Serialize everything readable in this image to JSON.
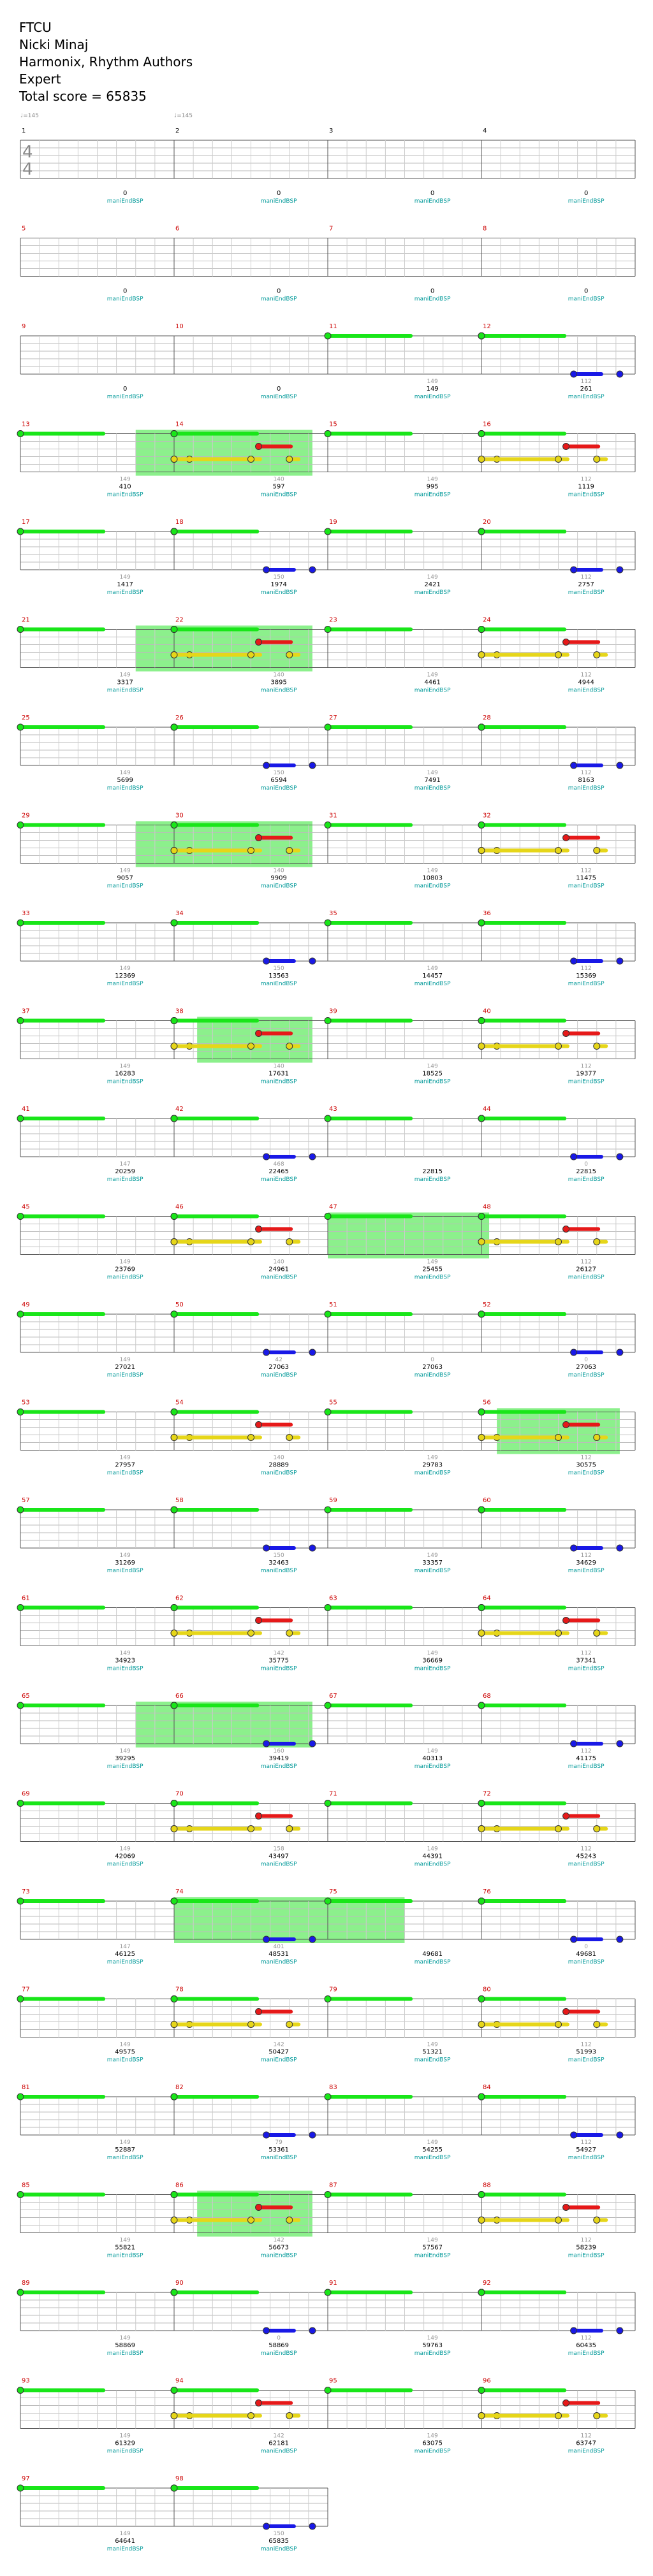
{
  "song": {
    "title": "FTCU",
    "artist": "Nicki Minaj",
    "charter": "Harmonix, Rhythm Authors",
    "difficulty": "Expert",
    "total_score_text": "Total score = 65835"
  },
  "time_signature": {
    "top": "4",
    "bottom": "4"
  },
  "tempo_markers": [
    {
      "measure": 1,
      "label": "♩=145"
    },
    {
      "measure": 2,
      "label": "♩=145"
    }
  ],
  "rows": [
    {
      "measures": [
        1,
        2,
        3,
        4
      ],
      "scores": [
        "0",
        "0",
        "0",
        "0"
      ],
      "extras": [
        "",
        "",
        "",
        ""
      ],
      "labels": [
        "maniEndBSP",
        "maniEndBSP",
        "maniEndBSP",
        "maniEndBSP"
      ]
    },
    {
      "measures": [
        5,
        6,
        7,
        8
      ],
      "scores": [
        "0",
        "0",
        "0",
        "0"
      ],
      "extras": [
        "",
        "",
        "",
        ""
      ],
      "labels": [
        "maniEndBSP",
        "maniEndBSP",
        "maniEndBSP",
        "maniEndBSP"
      ]
    },
    {
      "measures": [
        9,
        10,
        11,
        12
      ],
      "scores": [
        "0",
        "0",
        "149",
        "261"
      ],
      "extras": [
        "",
        "",
        "149",
        "112"
      ],
      "labels": [
        "maniEndBSP",
        "maniEndBSP",
        "maniEndBSP",
        "maniEndBSP"
      ]
    },
    {
      "measures": [
        13,
        14,
        15,
        16
      ],
      "scores": [
        "410",
        "597",
        "995",
        "1119"
      ],
      "extras": [
        "149",
        "140",
        "149",
        "112"
      ],
      "labels": [
        "maniEndBSP",
        "maniEndBSP",
        "maniEndBSP",
        "maniEndBSP"
      ]
    },
    {
      "measures": [
        17,
        18,
        19,
        20
      ],
      "scores": [
        "1417",
        "1974",
        "2421",
        "2757"
      ],
      "extras": [
        "149",
        "150",
        "149",
        "112"
      ],
      "labels": [
        "maniEndBSP",
        "maniEndBSP",
        "maniEndBSP",
        "maniEndBSP"
      ]
    },
    {
      "measures": [
        21,
        22,
        23,
        24
      ],
      "scores": [
        "3317",
        "3895",
        "4461",
        "4944"
      ],
      "extras": [
        "149",
        "140",
        "149",
        "112"
      ],
      "labels": [
        "maniEndBSP",
        "maniEndBSP",
        "maniEndBSP",
        "maniEndBSP"
      ]
    },
    {
      "measures": [
        25,
        26,
        27,
        28
      ],
      "scores": [
        "5699",
        "6594",
        "7491",
        "8163"
      ],
      "extras": [
        "149",
        "150",
        "149",
        "112"
      ],
      "labels": [
        "maniEndBSP",
        "maniEndBSP",
        "maniEndBSP",
        "maniEndBSP"
      ]
    },
    {
      "measures": [
        29,
        30,
        31,
        32
      ],
      "scores": [
        "9057",
        "9909",
        "10803",
        "11475"
      ],
      "extras": [
        "149",
        "140",
        "149",
        "112"
      ],
      "labels": [
        "maniEndBSP",
        "maniEndBSP",
        "maniEndBSP",
        "maniEndBSP"
      ]
    },
    {
      "measures": [
        33,
        34,
        35,
        36
      ],
      "scores": [
        "12369",
        "13563",
        "14457",
        "15369"
      ],
      "extras": [
        "149",
        "150",
        "149",
        "112"
      ],
      "labels": [
        "maniEndBSP",
        "maniEndBSP",
        "maniEndBSP",
        "maniEndBSP"
      ]
    },
    {
      "measures": [
        37,
        38,
        39,
        40
      ],
      "scores": [
        "16283",
        "17631",
        "18525",
        "19377"
      ],
      "extras": [
        "149",
        "140",
        "149",
        "112"
      ],
      "labels": [
        "maniEndBSP",
        "maniEndBSP",
        "maniEndBSP",
        "maniEndBSP"
      ]
    },
    {
      "measures": [
        41,
        42,
        43,
        44
      ],
      "scores": [
        "20259",
        "22465",
        "22815",
        "22815"
      ],
      "extras": [
        "147",
        "468",
        "",
        "0"
      ],
      "labels": [
        "maniEndBSP",
        "maniEndBSP",
        "maniEndBSP",
        "maniEndBSP"
      ]
    },
    {
      "measures": [
        45,
        46,
        47,
        48
      ],
      "scores": [
        "23769",
        "24961",
        "25455",
        "26127"
      ],
      "extras": [
        "149",
        "140",
        "149",
        "112"
      ],
      "labels": [
        "maniEndBSP",
        "maniEndBSP",
        "maniEndBSP",
        "maniEndBSP"
      ]
    },
    {
      "measures": [
        49,
        50,
        51,
        52
      ],
      "scores": [
        "27021",
        "27063",
        "27063",
        "27063"
      ],
      "extras": [
        "149",
        "42",
        "0",
        "0"
      ],
      "labels": [
        "maniEndBSP",
        "maniEndBSP",
        "maniEndBSP",
        "maniEndBSP"
      ]
    },
    {
      "measures": [
        53,
        54,
        55,
        56
      ],
      "scores": [
        "27957",
        "28889",
        "29783",
        "30575"
      ],
      "extras": [
        "149",
        "140",
        "149",
        "112"
      ],
      "labels": [
        "maniEndBSP",
        "maniEndBSP",
        "maniEndBSP",
        "maniEndBSP"
      ]
    },
    {
      "measures": [
        57,
        58,
        59,
        60
      ],
      "scores": [
        "31269",
        "32463",
        "33357",
        "34629"
      ],
      "extras": [
        "149",
        "150",
        "149",
        "112"
      ],
      "labels": [
        "maniEndBSP",
        "maniEndBSP",
        "maniEndBSP",
        "maniEndBSP"
      ]
    },
    {
      "measures": [
        61,
        62,
        63,
        64
      ],
      "scores": [
        "34923",
        "35775",
        "36669",
        "37341"
      ],
      "extras": [
        "149",
        "142",
        "149",
        "112"
      ],
      "labels": [
        "maniEndBSP",
        "maniEndBSP",
        "maniEndBSP",
        "maniEndBSP"
      ]
    },
    {
      "measures": [
        65,
        66,
        67,
        68
      ],
      "scores": [
        "39295",
        "39419",
        "40313",
        "41175"
      ],
      "extras": [
        "149",
        "160",
        "149",
        "112"
      ],
      "labels": [
        "maniEndBSP",
        "maniEndBSP",
        "maniEndBSP",
        "maniEndBSP"
      ]
    },
    {
      "measures": [
        69,
        70,
        71,
        72
      ],
      "scores": [
        "42069",
        "43497",
        "44391",
        "45243"
      ],
      "extras": [
        "149",
        "158",
        "149",
        "112"
      ],
      "labels": [
        "maniEndBSP",
        "maniEndBSP",
        "maniEndBSP",
        "maniEndBSP"
      ]
    },
    {
      "measures": [
        73,
        74,
        75,
        76
      ],
      "scores": [
        "46125",
        "48531",
        "49681",
        "49681"
      ],
      "extras": [
        "147",
        "401",
        "",
        "0"
      ],
      "labels": [
        "maniEndBSP",
        "maniEndBSP",
        "maniEndBSP",
        "maniEndBSP"
      ]
    },
    {
      "measures": [
        77,
        78,
        79,
        80
      ],
      "scores": [
        "49575",
        "50427",
        "51321",
        "51993"
      ],
      "extras": [
        "149",
        "142",
        "149",
        "112"
      ],
      "labels": [
        "maniEndBSP",
        "maniEndBSP",
        "maniEndBSP",
        "maniEndBSP"
      ]
    },
    {
      "measures": [
        81,
        82,
        83,
        84
      ],
      "scores": [
        "52887",
        "53361",
        "54255",
        "54927"
      ],
      "extras": [
        "149",
        "79",
        "149",
        "112"
      ],
      "labels": [
        "maniEndBSP",
        "maniEndBSP",
        "maniEndBSP",
        "maniEndBSP"
      ]
    },
    {
      "measures": [
        85,
        86,
        87,
        88
      ],
      "scores": [
        "55821",
        "56673",
        "57567",
        "58239"
      ],
      "extras": [
        "149",
        "142",
        "149",
        "112"
      ],
      "labels": [
        "maniEndBSP",
        "maniEndBSP",
        "maniEndBSP",
        "maniEndBSP"
      ]
    },
    {
      "measures": [
        89,
        90,
        91,
        92
      ],
      "scores": [
        "58869",
        "58869",
        "59763",
        "60435"
      ],
      "extras": [
        "149",
        "0",
        "149",
        "112"
      ],
      "labels": [
        "maniEndBSP",
        "maniEndBSP",
        "maniEndBSP",
        "maniEndBSP"
      ]
    },
    {
      "measures": [
        93,
        94,
        95,
        96
      ],
      "scores": [
        "61329",
        "62181",
        "63075",
        "63747"
      ],
      "extras": [
        "149",
        "142",
        "149",
        "112"
      ],
      "labels": [
        "maniEndBSP",
        "maniEndBSP",
        "maniEndBSP",
        "maniEndBSP"
      ]
    },
    {
      "measures": [
        97,
        98
      ],
      "scores": [
        "64641",
        "65835"
      ],
      "extras": [
        "149",
        "150"
      ],
      "labels": [
        "maniEndBSP",
        "maniEndBSP"
      ]
    }
  ],
  "colors": {
    "green": "#19e619",
    "red": "#e61919",
    "yellow": "#e6d619",
    "blue": "#1919e6",
    "orange": "#f0a020",
    "overdrive": "#8cf08c",
    "measure_number": "#cc0000",
    "first_measure_number": "#000000",
    "score_text": "#000000",
    "label_text": "#009999",
    "extra_text": "#999999"
  },
  "patterns": {
    "A": [
      {
        "lane": 0,
        "t": 0.0,
        "len": 0.9
      },
      {
        "lane": 0,
        "t": 1.0,
        "len": 0.85
      },
      {
        "lane": 2,
        "t": 2.0,
        "len": 0.9
      },
      {
        "lane": 2,
        "t": 2.1,
        "len": 0.35
      },
      {
        "lane": 2,
        "t": 2.5,
        "len": 0.1
      },
      {
        "lane": 2,
        "t": 2.75,
        "len": 0.1
      },
      {
        "lane": 2,
        "t": 3.0,
        "len": 0.3
      },
      {
        "lane": 1,
        "t": 3.55,
        "len": 0.35
      }
    ],
    "B": [
      {
        "lane": 0,
        "t": 0.0,
        "len": 0.9
      },
      {
        "lane": 0,
        "t": 1.0,
        "len": 0.85
      },
      {
        "lane": 0,
        "t": 2.0,
        "len": 0.85
      },
      {
        "lane": 3,
        "t": 2.9,
        "len": 0
      },
      {
        "lane": 0,
        "t": 3.0,
        "len": 0.9
      },
      {
        "lane": 3,
        "t": 3.6,
        "len": 0.3
      }
    ]
  }
}
